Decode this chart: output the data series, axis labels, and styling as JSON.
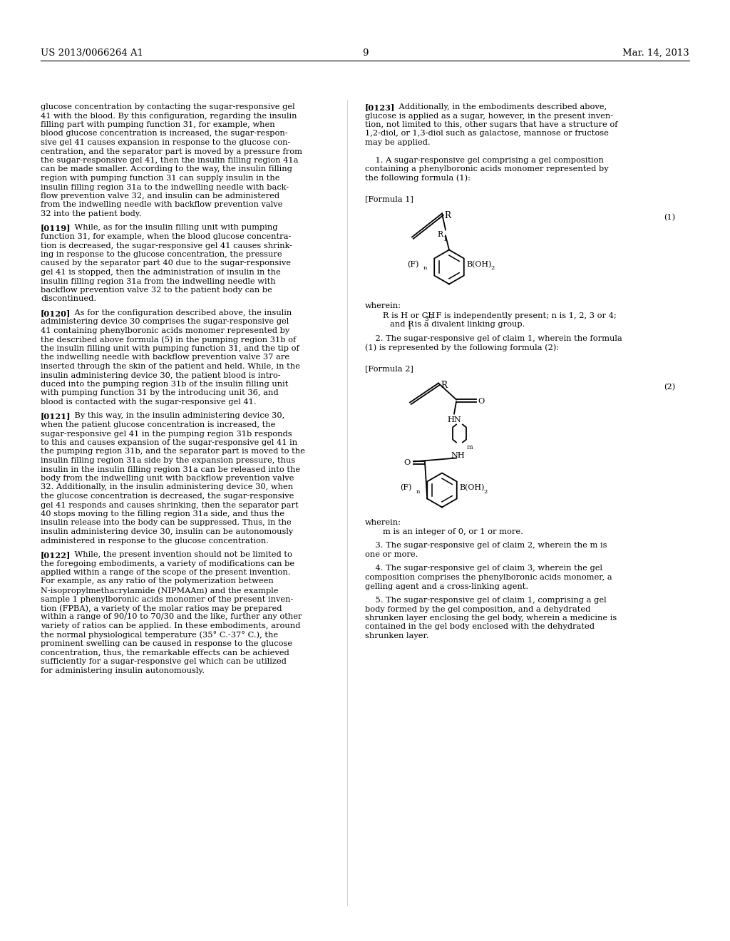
{
  "background_color": "#ffffff",
  "header_left": "US 2013/0066264 A1",
  "header_right": "Mar. 14, 2013",
  "page_number": "9",
  "left_col_blocks": [
    {
      "tag": null,
      "lines": [
        "glucose concentration by contacting the sugar-responsive gel",
        "41 with the blood. By this configuration, regarding the insulin",
        "filling part with pumping function 31, for example, when",
        "blood glucose concentration is increased, the sugar-respon-",
        "sive gel 41 causes expansion in response to the glucose con-",
        "centration, and the separator part is moved by a pressure from",
        "the sugar-responsive gel 41, then the insulin filling region 41a",
        "can be made smaller. According to the way, the insulin filling",
        "region with pumping function 31 can supply insulin in the",
        "insulin filling region 31a to the indwelling needle with back-",
        "flow prevention valve 32, and insulin can be administered",
        "from the indwelling needle with backflow prevention valve",
        "32 into the patient body."
      ]
    },
    {
      "tag": "[0119]",
      "lines": [
        "    While, as for the insulin filling unit with pumping",
        "function 31, for example, when the blood glucose concentra-",
        "tion is decreased, the sugar-responsive gel 41 causes shrink-",
        "ing in response to the glucose concentration, the pressure",
        "caused by the separator part 40 due to the sugar-responsive",
        "gel 41 is stopped, then the administration of insulin in the",
        "insulin filling region 31a from the indwelling needle with",
        "backflow prevention valve 32 to the patient body can be",
        "discontinued."
      ]
    },
    {
      "tag": "[0120]",
      "lines": [
        "    As for the configuration described above, the insulin",
        "administering device 30 comprises the sugar-responsive gel",
        "41 containing phenylboronic acids monomer represented by",
        "the described above formula (5) in the pumping region 31b of",
        "the insulin filling unit with pumping function 31, and the tip of",
        "the indwelling needle with backflow prevention valve 37 are",
        "inserted through the skin of the patient and held. While, in the",
        "insulin administering device 30, the patient blood is intro-",
        "duced into the pumping region 31b of the insulin filling unit",
        "with pumping function 31 by the introducing unit 36, and",
        "blood is contacted with the sugar-responsive gel 41."
      ]
    },
    {
      "tag": "[0121]",
      "lines": [
        "    By this way, in the insulin administering device 30,",
        "when the patient glucose concentration is increased, the",
        "sugar-responsive gel 41 in the pumping region 31b responds",
        "to this and causes expansion of the sugar-responsive gel 41 in",
        "the pumping region 31b, and the separator part is moved to the",
        "insulin filling region 31a side by the expansion pressure, thus",
        "insulin in the insulin filling region 31a can be released into the",
        "body from the indwelling unit with backflow prevention valve",
        "32. Additionally, in the insulin administering device 30, when",
        "the glucose concentration is decreased, the sugar-responsive",
        "gel 41 responds and causes shrinking, then the separator part",
        "40 stops moving to the filling region 31a side, and thus the",
        "insulin release into the body can be suppressed. Thus, in the",
        "insulin administering device 30, insulin can be autonomously",
        "administered in response to the glucose concentration."
      ]
    },
    {
      "tag": "[0122]",
      "lines": [
        "    While, the present invention should not be limited to",
        "the foregoing embodiments, a variety of modifications can be",
        "applied within a range of the scope of the present invention.",
        "For example, as any ratio of the polymerization between",
        "N-isopropylmethacrylamide (NIPMAAm) and the example",
        "sample 1 phenylboronic acids monomer of the present inven-",
        "tion (FPBA), a variety of the molar ratios may be prepared",
        "within a range of 90/10 to 70/30 and the like, further any other",
        "variety of ratios can be applied. In these embodiments, around",
        "the normal physiological temperature (35° C.-37° C.), the",
        "prominent swelling can be caused in response to the glucose",
        "concentration, thus, the remarkable effects can be achieved",
        "sufficiently for a sugar-responsive gel which can be utilized",
        "for administering insulin autonomously."
      ]
    }
  ],
  "right_col_blocks": [
    {
      "tag": "[0123]",
      "lines": [
        "    Additionally, in the embodiments described above,",
        "glucose is applied as a sugar, however, in the present inven-",
        "tion, not limited to this, other sugars that have a structure of",
        "1,2-diol, or 1,3-diol such as galactose, mannose or fructose",
        "may be applied."
      ]
    }
  ],
  "claim1_lines": [
    "    1. A sugar-responsive gel comprising a gel composition",
    "containing a phenylboronic acids monomer represented by",
    "the following formula (1):"
  ],
  "formula1_label": "[Formula 1]",
  "formula1_number": "(1)",
  "wherein1_lines": [
    "wherein:",
    "    R is H or CH₃; F is independently present; n is 1, 2, 3 or 4;",
    "    and R₁ is a divalent linking group."
  ],
  "claim2_lines": [
    "    2. The sugar-responsive gel of claim 1, wherein the formula",
    "(1) is represented by the following formula (2):"
  ],
  "formula2_label": "[Formula 2]",
  "formula2_number": "(2)",
  "wherein2_lines": [
    "wherein:",
    "    m is an integer of 0, or 1 or more."
  ],
  "claim3_lines": [
    "    3. The sugar-responsive gel of claim 2, wherein the m is",
    "one or more."
  ],
  "claim4_lines": [
    "    4. The sugar-responsive gel of claim 3, wherein the gel",
    "composition comprises the phenylboronic acids monomer, a",
    "gelling agent and a cross-linking agent."
  ],
  "claim5_lines": [
    "    5. The sugar-responsive gel of claim 1, comprising a gel",
    "body formed by the gel composition, and a dehydrated",
    "shrunken layer enclosing the gel body, wherein a medicine is",
    "contained in the gel body enclosed with the dehydrated",
    "shrunken layer."
  ]
}
